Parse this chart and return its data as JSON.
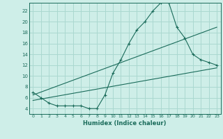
{
  "xlabel": "Humidex (Indice chaleur)",
  "background_color": "#ceeee8",
  "line_color": "#1a6b5a",
  "grid_color": "#aad8d0",
  "x_ticks": [
    0,
    1,
    2,
    3,
    4,
    5,
    6,
    7,
    8,
    9,
    10,
    11,
    12,
    13,
    14,
    15,
    16,
    17,
    18,
    19,
    20,
    21,
    22,
    23
  ],
  "y_ticks": [
    4,
    6,
    8,
    10,
    12,
    14,
    16,
    18,
    20,
    22
  ],
  "ylim": [
    3.0,
    23.5
  ],
  "xlim": [
    -0.5,
    23.5
  ],
  "curve1_x": [
    0,
    1,
    2,
    3,
    4,
    5,
    6,
    7,
    8,
    9,
    10,
    11,
    12,
    13,
    14,
    15,
    16,
    17,
    18,
    19,
    20,
    21,
    22,
    23
  ],
  "curve1_y": [
    7.0,
    6.0,
    5.0,
    4.5,
    4.5,
    4.5,
    4.5,
    4.0,
    4.0,
    6.5,
    10.5,
    13.0,
    16.0,
    18.5,
    20.0,
    22.0,
    23.5,
    23.5,
    19.0,
    17.0,
    14.0,
    13.0,
    12.5,
    12.0
  ],
  "line2_x": [
    0,
    23
  ],
  "line2_y": [
    6.5,
    19.0
  ],
  "line3_x": [
    0,
    23
  ],
  "line3_y": [
    5.5,
    11.5
  ]
}
